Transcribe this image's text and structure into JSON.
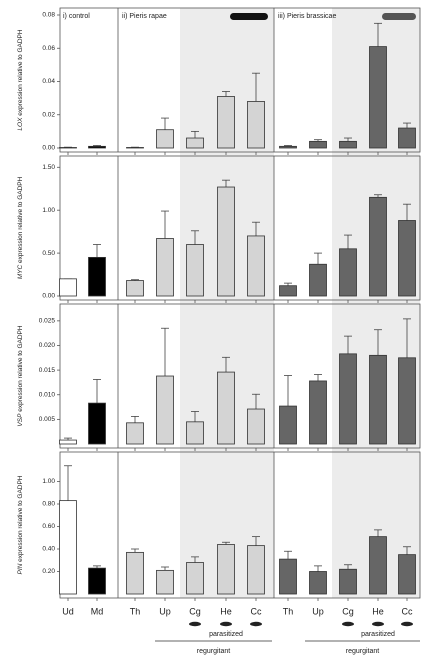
{
  "x_labels": [
    "Ud",
    "Md",
    "Th",
    "Up",
    "Cg",
    "He",
    "Cc",
    "Th",
    "Up",
    "Cg",
    "He",
    "Cc"
  ],
  "bar_colors": [
    "#ffffff",
    "#000000",
    "#d4d4d4",
    "#d4d4d4",
    "#d4d4d4",
    "#d4d4d4",
    "#d4d4d4",
    "#666666",
    "#666666",
    "#666666",
    "#666666",
    "#666666"
  ],
  "group_labels": [
    "i) control",
    "ii) Pieris rapae",
    "iii) Pieris brassicae"
  ],
  "parasitized": [
    "parasitized",
    "parasitized"
  ],
  "regurgitant": [
    "regurgitant",
    "regurgitant"
  ],
  "chart_data": [
    {
      "type": "bar",
      "gene": "LOX",
      "ylabel": "expression relative to GADPH",
      "ylim": [
        0,
        0.08
      ],
      "yticks": [
        {
          "value": 0,
          "label": "0.00"
        },
        {
          "value": 0.02,
          "label": "0.02"
        },
        {
          "value": 0.04,
          "label": "0.04"
        },
        {
          "value": 0.06,
          "label": "0.06"
        },
        {
          "value": 0.08,
          "label": "0.08"
        }
      ],
      "values": [
        0.0003,
        0.001,
        0.0003,
        0.011,
        0.006,
        0.031,
        0.028,
        0.001,
        0.004,
        0.004,
        0.061,
        0.012
      ],
      "errors": [
        0.0002,
        0.0005,
        0.0002,
        0.007,
        0.004,
        0.003,
        0.017,
        0.0005,
        0.001,
        0.002,
        0.014,
        0.003
      ]
    },
    {
      "type": "bar",
      "gene": "MYC",
      "ylabel": "expression relative to GADPH",
      "ylim": [
        0,
        1.55
      ],
      "yticks": [
        {
          "value": 0,
          "label": "0.00"
        },
        {
          "value": 0.5,
          "label": "0.50"
        },
        {
          "value": 1,
          "label": "1.00"
        },
        {
          "value": 1.5,
          "label": "1.50"
        }
      ],
      "values": [
        0.2,
        0.45,
        0.18,
        0.67,
        0.6,
        1.27,
        0.7,
        0.12,
        0.37,
        0.55,
        1.15,
        0.88
      ],
      "errors": [
        0,
        0.15,
        0.01,
        0.32,
        0.16,
        0.08,
        0.16,
        0.03,
        0.13,
        0.16,
        0.03,
        0.19
      ]
    },
    {
      "type": "bar",
      "gene": "VSP",
      "ylabel": "expression relative to GADPH",
      "ylim": [
        0,
        0.027
      ],
      "yticks": [
        {
          "value": 0.005,
          "label": "0.005"
        },
        {
          "value": 0.01,
          "label": "0.010"
        },
        {
          "value": 0.015,
          "label": "0.015"
        },
        {
          "value": 0.02,
          "label": "0.020"
        },
        {
          "value": 0.025,
          "label": "0.025"
        }
      ],
      "values": [
        0.0008,
        0.0083,
        0.0043,
        0.0138,
        0.0045,
        0.0146,
        0.0071,
        0.0077,
        0.0128,
        0.0183,
        0.018,
        0.0175
      ],
      "errors": [
        0.0004,
        0.0048,
        0.0013,
        0.0097,
        0.0021,
        0.003,
        0.003,
        0.0062,
        0.0013,
        0.0036,
        0.0052,
        0.0079
      ]
    },
    {
      "type": "bar",
      "gene": "PIN",
      "ylabel": "expression relative to GADPH",
      "ylim": [
        0,
        1.2
      ],
      "yticks": [
        {
          "value": 0.2,
          "label": "0.20"
        },
        {
          "value": 0.4,
          "label": "0.40"
        },
        {
          "value": 0.6,
          "label": "0.60"
        },
        {
          "value": 0.8,
          "label": "0.80"
        },
        {
          "value": 1,
          "label": "1.00"
        }
      ],
      "values": [
        0.83,
        0.23,
        0.37,
        0.21,
        0.28,
        0.44,
        0.43,
        0.31,
        0.2,
        0.22,
        0.51,
        0.35
      ],
      "errors": [
        0.31,
        0.02,
        0.03,
        0.03,
        0.05,
        0.02,
        0.08,
        0.07,
        0.05,
        0.04,
        0.06,
        0.07
      ]
    }
  ]
}
